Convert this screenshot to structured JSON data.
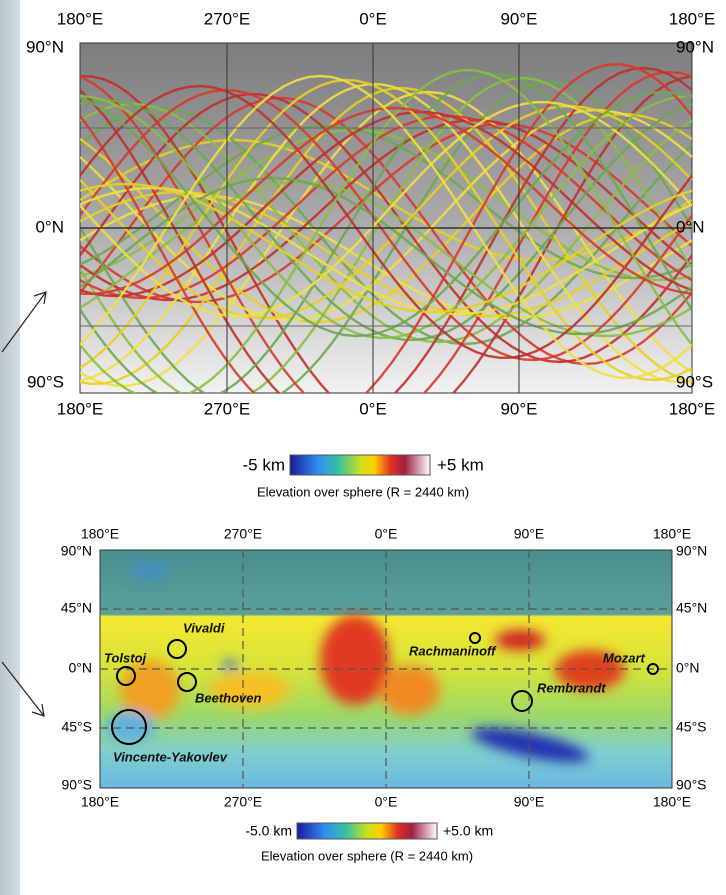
{
  "top_map": {
    "x_ticks_top": [
      "180°E",
      "270°E",
      "0°E",
      "90°E",
      "180°E"
    ],
    "x_ticks_bottom": [
      "180°E",
      "270°E",
      "0°E",
      "90°E",
      "180°E"
    ],
    "y_ticks_left": [
      "90°N",
      "0°N",
      "90°S"
    ],
    "y_ticks_right": [
      "90°N",
      "0°N",
      "90°S"
    ],
    "colorbar": {
      "min_label": "-5 km",
      "max_label": "+5 km",
      "caption": "Elevation over sphere (R = 2440 km)"
    }
  },
  "bottom_map": {
    "x_ticks_top": [
      "180°E",
      "270°E",
      "0°E",
      "90°E",
      "180°E"
    ],
    "x_ticks_bottom": [
      "180°E",
      "270°E",
      "0°E",
      "90°E",
      "180°E"
    ],
    "y_ticks_left": [
      "90°N",
      "45°N",
      "0°N",
      "45°S",
      "90°S"
    ],
    "y_ticks_right": [
      "90°N",
      "45°N",
      "0°N",
      "45°S",
      "90°S"
    ],
    "craters": [
      "Vivaldi",
      "Tolstoj",
      "Beethoven",
      "Vincente-Yakovlev",
      "Rachmaninoff",
      "Mozart",
      "Rembrandt"
    ],
    "colorbar": {
      "min_label": "-5.0 km",
      "max_label": "+5.0 km",
      "caption": "Elevation over sphere (R = 2440 km)"
    }
  }
}
